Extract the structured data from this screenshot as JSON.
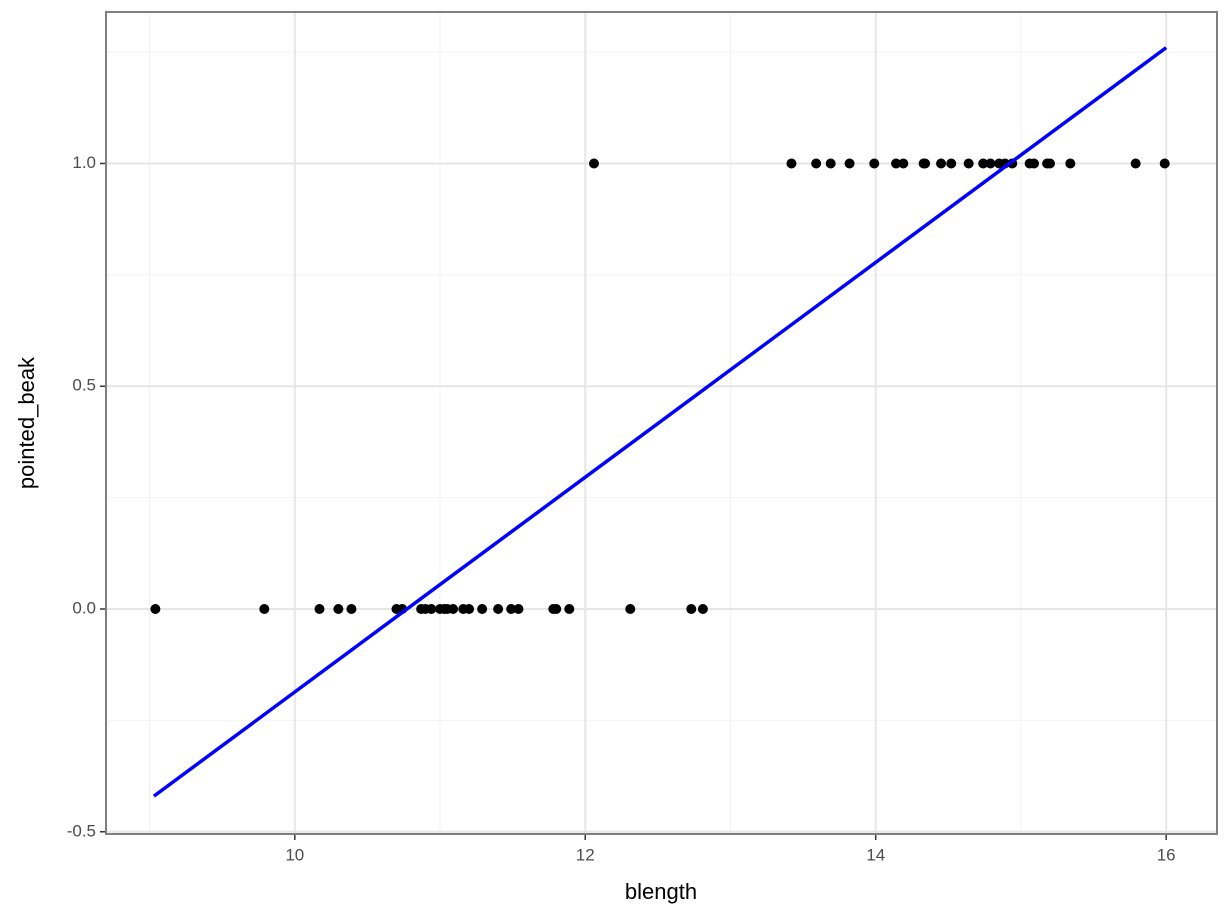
{
  "chart_data": {
    "type": "scatter",
    "x_label": "blength",
    "y_label": "pointed_beak",
    "xlim": [
      8.7,
      16.35
    ],
    "ylim": [
      -0.505,
      1.34
    ],
    "xticks": [
      10,
      12,
      14,
      16
    ],
    "yticks": [
      {
        "value": -0.5,
        "label": "-0.5"
      },
      {
        "value": 0,
        "label": "0.0"
      },
      0.5,
      {
        "value": 1,
        "label": "1.0"
      }
    ],
    "x_minor_grid": [
      9,
      11,
      13,
      15
    ],
    "y_minor_grid": [
      -0.25,
      0.25,
      0.75,
      1.25
    ],
    "grid": true,
    "series": [
      {
        "type": "scatter",
        "color": "#000000",
        "x": [
          9.04,
          9.79,
          10.17,
          10.3,
          10.39,
          10.7,
          10.74,
          10.87,
          10.9,
          10.94,
          11.0,
          11.03,
          11.05,
          11.09,
          11.16,
          11.2,
          11.29,
          11.4,
          11.49,
          11.54,
          11.78,
          11.8,
          11.89,
          12.31,
          12.73,
          12.81,
          12.06,
          13.42,
          13.59,
          13.69,
          13.82,
          13.99,
          14.14,
          14.19,
          14.33,
          14.34,
          14.45,
          14.52,
          14.64,
          14.74,
          14.79,
          14.85,
          14.89,
          14.94,
          15.06,
          15.09,
          15.18,
          15.2,
          15.34,
          15.79,
          15.99
        ],
        "values": [
          0,
          0,
          0,
          0,
          0,
          0,
          0,
          0,
          0,
          0,
          0,
          0,
          0,
          0,
          0,
          0,
          0,
          0,
          0,
          0,
          0,
          0,
          0,
          0,
          0,
          0,
          1,
          1,
          1,
          1,
          1,
          1,
          1,
          1,
          1,
          1,
          1,
          1,
          1,
          1,
          1,
          1,
          1,
          1,
          1,
          1,
          1,
          1,
          1,
          1,
          1
        ]
      },
      {
        "type": "line",
        "color": "#0000ff",
        "x": [
          9.03,
          16.0
        ],
        "values": [
          -0.42,
          1.26
        ]
      }
    ]
  }
}
